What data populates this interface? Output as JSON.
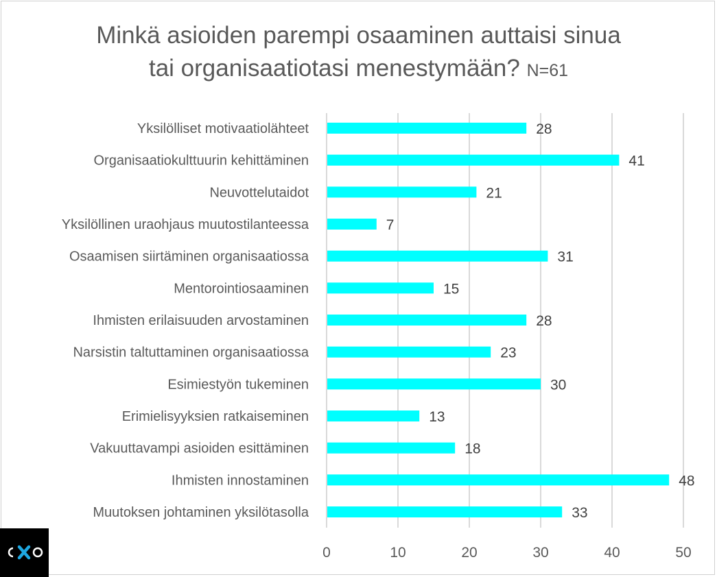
{
  "chart_data": {
    "type": "bar",
    "orientation": "horizontal",
    "title_line1": "Minkä asioiden parempi osaaminen auttaisi sinua",
    "title_line2": "tai organisaatiotasi menestymään?",
    "title_note": "N=61",
    "categories": [
      "Yksilölliset motivaatiolähteet",
      "Organisaatiokulttuurin kehittäminen",
      "Neuvottelutaidot",
      "Yksilöllinen uraohjaus muutostilanteessa",
      "Osaamisen siirtäminen organisaatiossa",
      "Mentorointiosaaminen",
      "Ihmisten erilaisuuden arvostaminen",
      "Narsistin taltuttaminen organisaatiossa",
      "Esimiestyön tukeminen",
      "Erimielisyyksien ratkaiseminen",
      "Vakuuttavampi asioiden esittäminen",
      "Ihmisten innostaminen",
      "Muutoksen johtaminen yksilötasolla"
    ],
    "values": [
      28,
      41,
      21,
      7,
      31,
      15,
      28,
      23,
      30,
      13,
      18,
      48,
      33
    ],
    "xlim": [
      0,
      50
    ],
    "ticks": [
      0,
      10,
      20,
      30,
      40,
      50
    ],
    "grid": true,
    "bar_color": "#00FFFF",
    "data_labels": true
  },
  "logo": {
    "text": "cXo",
    "accent": "#1ea7e1"
  }
}
